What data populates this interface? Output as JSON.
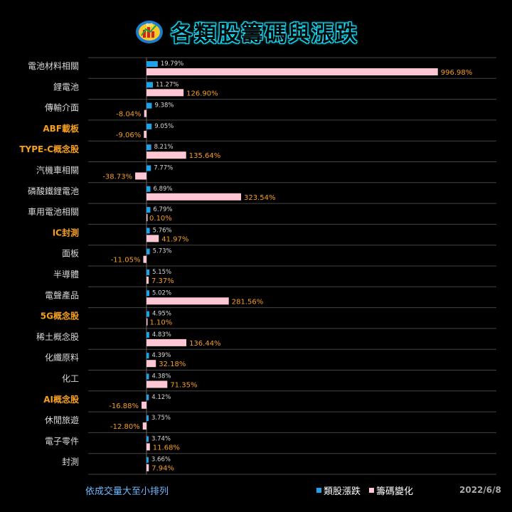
{
  "title": "各類股籌碼與漲跌",
  "logo_text": "資訊",
  "footer_note": "依成交量大至小排列",
  "date": "2022/6/8",
  "colors": {
    "price_series": "#1fa2e8",
    "chip_series": "#ffc6d3",
    "label_highlight": "#f5a01d",
    "label_normal": "#d9d9d9",
    "value_chip": "#f5a01d",
    "value_price": "#d9d9d9",
    "grid": "#444444",
    "title_glow": "#19e3ff"
  },
  "chart_data": {
    "type": "bar",
    "orientation": "horizontal",
    "categories": [
      "電池材料相關",
      "鋰電池",
      "傳輸介面",
      "ABF載板",
      "TYPE-C概念股",
      "汽機車相關",
      "磷酸鐵鋰電池",
      "車用電池相關",
      "IC封測",
      "面板",
      "半導體",
      "電聲產品",
      "5G概念股",
      "稀土概念股",
      "化纖原料",
      "化工",
      "AI概念股",
      "休閒旅遊",
      "電子零件",
      "封測"
    ],
    "highlighted_categories": [
      "ABF載板",
      "TYPE-C概念股",
      "IC封測",
      "5G概念股",
      "AI概念股"
    ],
    "series": [
      {
        "name": "類股漲跌",
        "values": [
          19.79,
          11.27,
          9.38,
          9.05,
          8.21,
          7.77,
          6.89,
          6.79,
          5.76,
          5.73,
          5.15,
          5.02,
          4.95,
          4.83,
          4.39,
          4.38,
          4.12,
          3.75,
          3.74,
          3.66
        ],
        "labels": [
          "19.79%",
          "11.27%",
          "9.38%",
          "9.05%",
          "8.21%",
          "7.77%",
          "6.89%",
          "6.79%",
          "5.76%",
          "5.73%",
          "5.15%",
          "5.02%",
          "4.95%",
          "4.83%",
          "4.39%",
          "4.38%",
          "4.12%",
          "3.75%",
          "3.74%",
          "3.66%"
        ]
      },
      {
        "name": "籌碼變化",
        "values": [
          996.98,
          126.9,
          -8.04,
          -9.06,
          135.64,
          -38.73,
          323.54,
          0.1,
          41.97,
          -11.05,
          7.37,
          281.56,
          1.1,
          136.44,
          32.18,
          71.35,
          -16.88,
          -12.8,
          11.68,
          7.94
        ],
        "labels": [
          "996.98%",
          "126.90%",
          "-8.04%",
          "-9.06%",
          "135.64%",
          "-38.73%",
          "323.54%",
          "0.10%",
          "41.97%",
          "-11.05%",
          "7.37%",
          "281.56%",
          "1.10%",
          "136.44%",
          "32.18%",
          "71.35%",
          "-16.88%",
          "-12.80%",
          "11.68%",
          "7.94%"
        ]
      }
    ],
    "legend_position": "bottom-right",
    "grid": true
  }
}
